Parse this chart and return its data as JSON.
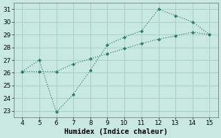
{
  "xlabel": "Humidex (Indice chaleur)",
  "x": [
    4,
    5,
    6,
    7,
    8,
    9,
    10,
    11,
    12,
    13,
    14,
    15
  ],
  "line1_y": [
    26.1,
    27.0,
    22.9,
    24.3,
    26.2,
    28.2,
    28.8,
    29.3,
    31.0,
    30.5,
    30.0,
    29.0
  ],
  "line2_y": [
    26.1,
    26.1,
    26.1,
    26.7,
    27.1,
    27.5,
    27.9,
    28.3,
    28.65,
    28.9,
    29.2,
    29.0
  ],
  "line_color": "#2E7D6B",
  "bg_color": "#C8E8E0",
  "grid_color": "#A8CEC8",
  "xlim": [
    3.5,
    15.5
  ],
  "ylim": [
    22.5,
    31.5
  ],
  "xticks": [
    4,
    5,
    6,
    7,
    8,
    9,
    10,
    11,
    12,
    13,
    14,
    15
  ],
  "yticks": [
    23,
    24,
    25,
    26,
    27,
    28,
    29,
    30,
    31
  ],
  "tick_fontsize": 6.5,
  "label_fontsize": 7.5
}
